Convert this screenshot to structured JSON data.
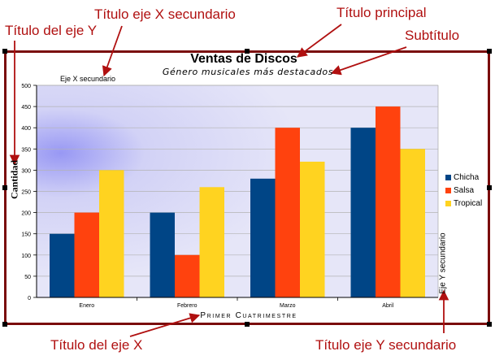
{
  "annotations": {
    "x2_title": "Título eje X secundario",
    "main_title": "Título principal",
    "y_title": "Título del eje Y",
    "subtitle": "Subtítulo",
    "x_title": "Título del eje X",
    "y2_title": "Título eje Y secundario"
  },
  "colors": {
    "annotation": "#b01010",
    "frame": "#7a0c0c",
    "plot_background": "#e6e6f8"
  },
  "chart_data": {
    "type": "bar",
    "title": "Ventas de Discos",
    "subtitle": "Género musicales más destacados",
    "xlabel": "Primer Cuatrimestre",
    "ylabel": "Cantidad",
    "x2label": "Eje X secundario",
    "y2label": "Eje Y secundario",
    "categories": [
      "Enero",
      "Febrero",
      "Marzo",
      "Abril"
    ],
    "series": [
      {
        "name": "Chicha",
        "color": "#004586",
        "values": [
          150,
          200,
          280,
          400
        ]
      },
      {
        "name": "Salsa",
        "color": "#ff420e",
        "values": [
          200,
          100,
          400,
          450
        ]
      },
      {
        "name": "Tropical",
        "color": "#ffd320",
        "values": [
          300,
          260,
          320,
          350
        ]
      }
    ],
    "ylim": [
      0,
      500
    ],
    "yticks": [
      0,
      50,
      100,
      150,
      200,
      250,
      300,
      350,
      400,
      450,
      500
    ],
    "grid": true,
    "legend": "right"
  }
}
